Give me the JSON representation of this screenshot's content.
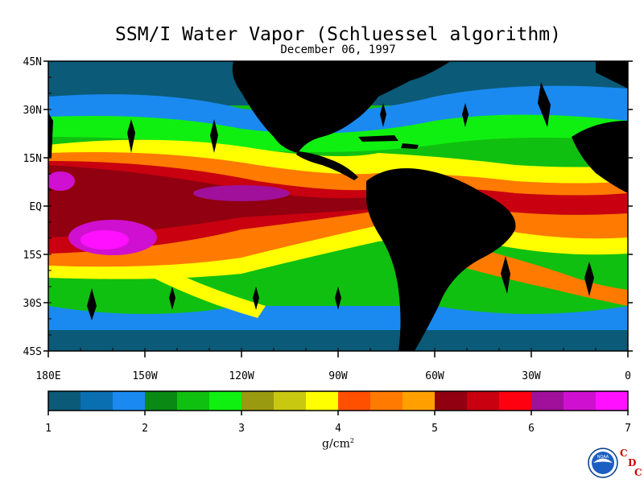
{
  "title": "SSM/I Water Vapor (Schluessel algorithm)",
  "subtitle": "December 06, 1997",
  "latitude_labels": [
    "45N",
    "30N",
    "15N",
    "EQ",
    "15S",
    "30S",
    "45S"
  ],
  "longitude_labels": [
    "180E",
    "150W",
    "120W",
    "90W",
    "60W",
    "30W",
    "0"
  ],
  "colorbar": {
    "colors": [
      "#0b5a78",
      "#0a6fb0",
      "#1a8af0",
      "#0a8a14",
      "#10c010",
      "#10f010",
      "#9a9a10",
      "#c8c810",
      "#ffff00",
      "#ff5000",
      "#ff7a00",
      "#ffa000",
      "#900010",
      "#c80010",
      "#ff0010",
      "#a0109a",
      "#d010d0",
      "#ff10ff"
    ],
    "tick_labels": [
      "1",
      "2",
      "3",
      "4",
      "5",
      "6",
      "7"
    ]
  },
  "units": "g/cm",
  "units_superscript": "2",
  "logos": {
    "noaa_text": "NOAA",
    "cdc_letters": [
      "C",
      "D",
      "C"
    ]
  },
  "colors": {
    "land": "#000000",
    "background": "#ffffff"
  }
}
